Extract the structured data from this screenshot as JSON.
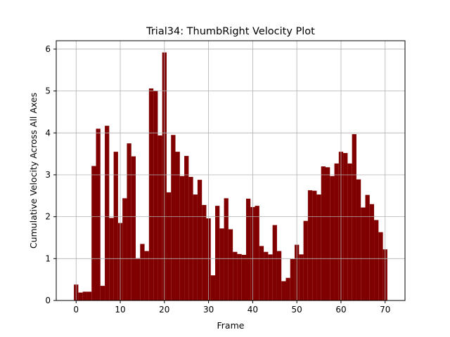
{
  "chart_data": {
    "type": "bar",
    "title": "Trial34: ThumbRight Velocity Plot",
    "xlabel": "Frame",
    "ylabel": "Cumulative Velocity Across All Axes",
    "xlim": [
      -4.5,
      74.5
    ],
    "ylim": [
      0,
      6.2
    ],
    "x_ticks": [
      0,
      10,
      20,
      30,
      40,
      50,
      60,
      70
    ],
    "y_ticks": [
      0,
      1,
      2,
      3,
      4,
      5,
      6
    ],
    "grid": true,
    "bar_color": "#800000",
    "bar_width": 1,
    "x": [
      0,
      1,
      2,
      3,
      4,
      5,
      6,
      7,
      8,
      9,
      10,
      11,
      12,
      13,
      14,
      15,
      16,
      17,
      18,
      19,
      20,
      21,
      22,
      23,
      24,
      25,
      26,
      27,
      28,
      29,
      30,
      31,
      32,
      33,
      34,
      35,
      36,
      37,
      38,
      39,
      40,
      41,
      42,
      43,
      44,
      45,
      46,
      47,
      48,
      49,
      50,
      51,
      52,
      53,
      54,
      55,
      56,
      57,
      58,
      59,
      60,
      61,
      62,
      63,
      64,
      65,
      66,
      67,
      68,
      69,
      70
    ],
    "values": [
      0.38,
      0.19,
      0.21,
      0.21,
      3.21,
      4.1,
      0.35,
      4.17,
      1.97,
      3.55,
      1.85,
      2.44,
      3.75,
      3.44,
      1.01,
      1.35,
      1.18,
      5.06,
      5.01,
      3.94,
      5.92,
      2.58,
      3.95,
      3.55,
      2.97,
      3.45,
      2.95,
      2.53,
      2.88,
      2.28,
      1.96,
      0.6,
      2.26,
      1.72,
      2.44,
      1.7,
      1.16,
      1.11,
      1.09,
      2.43,
      2.23,
      2.26,
      1.3,
      1.16,
      1.1,
      1.8,
      1.18,
      0.46,
      0.54,
      0.99,
      1.33,
      1.1,
      1.9,
      2.63,
      2.62,
      2.53,
      3.2,
      3.18,
      2.97,
      3.27,
      3.55,
      3.52,
      3.27,
      3.97,
      2.89,
      2.22,
      2.52,
      2.3,
      1.92,
      1.63,
      1.22
    ]
  }
}
